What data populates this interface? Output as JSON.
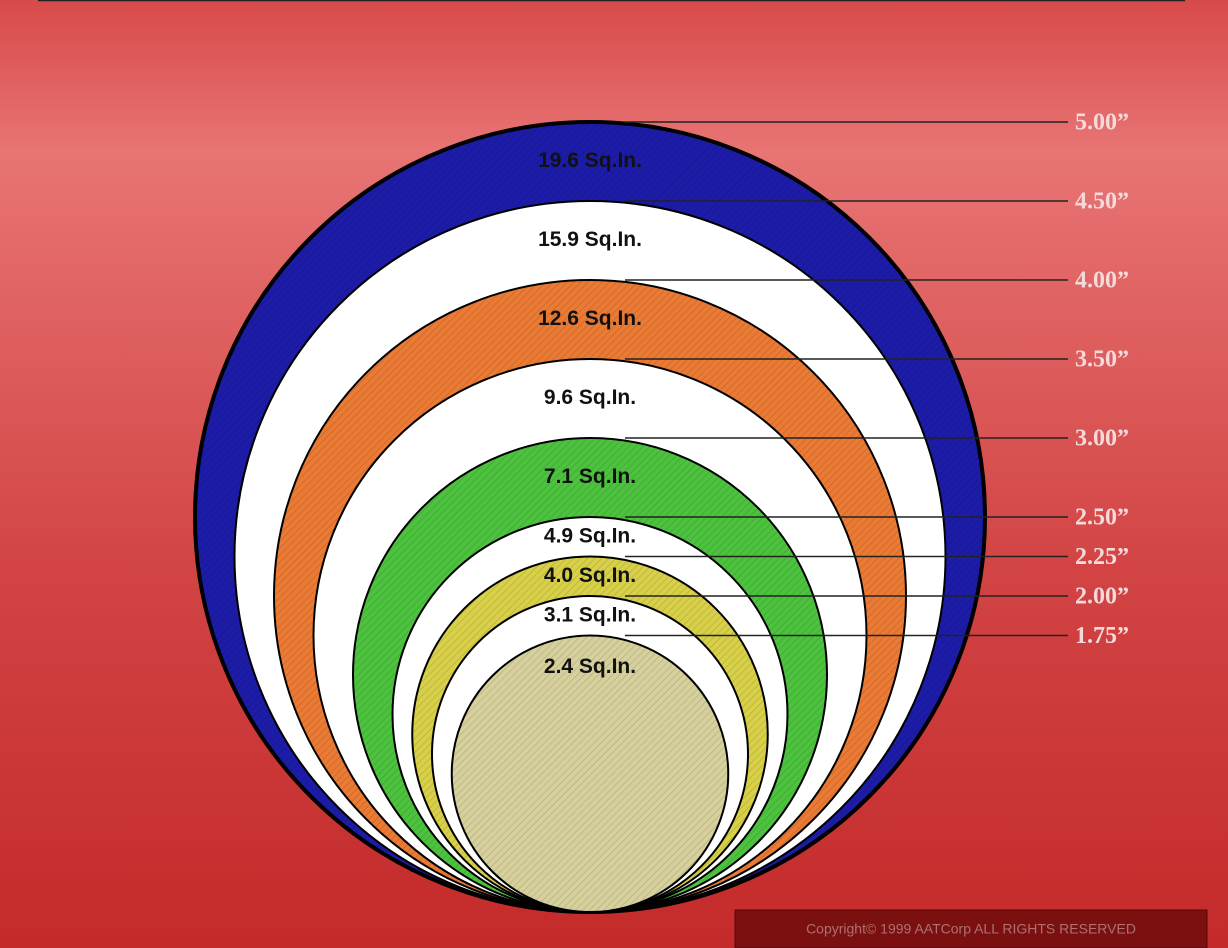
{
  "rings": [
    {
      "diameter": "5.00”",
      "area": "19.6 Sq.In.",
      "color": "#1c1ca8"
    },
    {
      "diameter": "4.50”",
      "area": "15.9 Sq.In.",
      "color": "#ffffff"
    },
    {
      "diameter": "4.00”",
      "area": "12.6 Sq.In.",
      "color": "#ea7a34"
    },
    {
      "diameter": "3.50”",
      "area": "9.6 Sq.In.",
      "color": "#ffffff"
    },
    {
      "diameter": "3.00”",
      "area": "7.1 Sq.In.",
      "color": "#4cc23e"
    },
    {
      "diameter": "2.50”",
      "area": "4.9 Sq.In.",
      "color": "#ffffff"
    },
    {
      "diameter": "2.25”",
      "area": "4.0 Sq.In.",
      "color": "#d8d048"
    },
    {
      "diameter": "2.00”",
      "area": "3.1 Sq.In.",
      "color": "#ffffff"
    },
    {
      "diameter": "1.75”",
      "area": "2.4 Sq.In.",
      "color": "#d6d09c"
    }
  ],
  "copyright": "Copyright© 1999 AATCorp ALL RIGHTS RESERVED"
}
